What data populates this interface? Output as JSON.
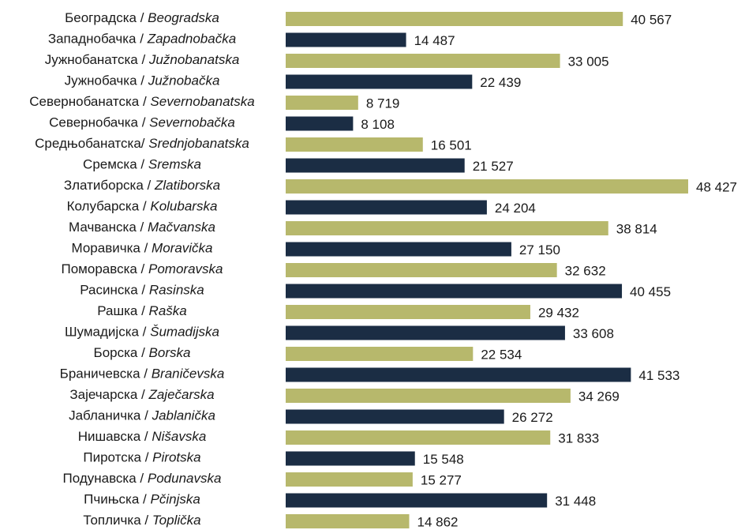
{
  "chart_data": {
    "type": "bar",
    "orientation": "horizontal",
    "categories": [
      "Београдска / Beogradska",
      "Западнобачка / Zapadnobačka",
      "Јужнобанатска / Južnobanatska",
      "Јужнобачка / Južnobačka",
      "Севернобанатска / Severnobanatska",
      "Севернобачка  / Severnobačka",
      "Средњобанатска/ Srednjobanatska",
      "Сремска / Sremska",
      "Златиборска / Zlatiborska",
      "Колубарска / Kolubarska",
      "Мачванска / Mačvanska",
      "Моравичка / Moravička",
      "Поморавска / Pomoravska",
      "Расинска / Rasinska",
      "Рашка / Raška",
      "Шумадијска / Šumadijska",
      "Борска / Borska",
      "Браничевска / Braničevska",
      "Зајечарска / Zaječarska",
      "Јабланичка / Jablanička",
      "Нишавска / Nišavska",
      "Пиротска / Pirotska",
      "Подунавска / Podunavska",
      "Пчињска / Pčinjska",
      "Топличка / Toplička"
    ],
    "values": [
      40567,
      14487,
      33005,
      22439,
      8719,
      8108,
      16501,
      21527,
      48427,
      24204,
      38814,
      27150,
      32632,
      40455,
      29432,
      33608,
      22534,
      41533,
      34269,
      26272,
      31833,
      15548,
      15277,
      31448,
      14862
    ],
    "value_labels": [
      "40 567",
      "14 487",
      "33 005",
      "22 439",
      "8 719",
      "8 108",
      "16 501",
      "21 527",
      "48 427",
      "24 204",
      "38 814",
      "27 150",
      "32 632",
      "40 455",
      "29 432",
      "33 608",
      "22 534",
      "41 533",
      "34 269",
      "26 272",
      "31 833",
      "15 548",
      "15 277",
      "31 448",
      "14 862"
    ],
    "colors": [
      "#b7b86c",
      "#1b2d44",
      "#b7b86c",
      "#1b2d44",
      "#b7b86c",
      "#1b2d44",
      "#b7b86c",
      "#1b2d44",
      "#b7b86c",
      "#1b2d44",
      "#b7b86c",
      "#1b2d44",
      "#b7b86c",
      "#1b2d44",
      "#b7b86c",
      "#1b2d44",
      "#b7b86c",
      "#1b2d44",
      "#b7b86c",
      "#1b2d44",
      "#b7b86c",
      "#1b2d44",
      "#b7b86c",
      "#1b2d44",
      "#b7b86c"
    ]
  }
}
